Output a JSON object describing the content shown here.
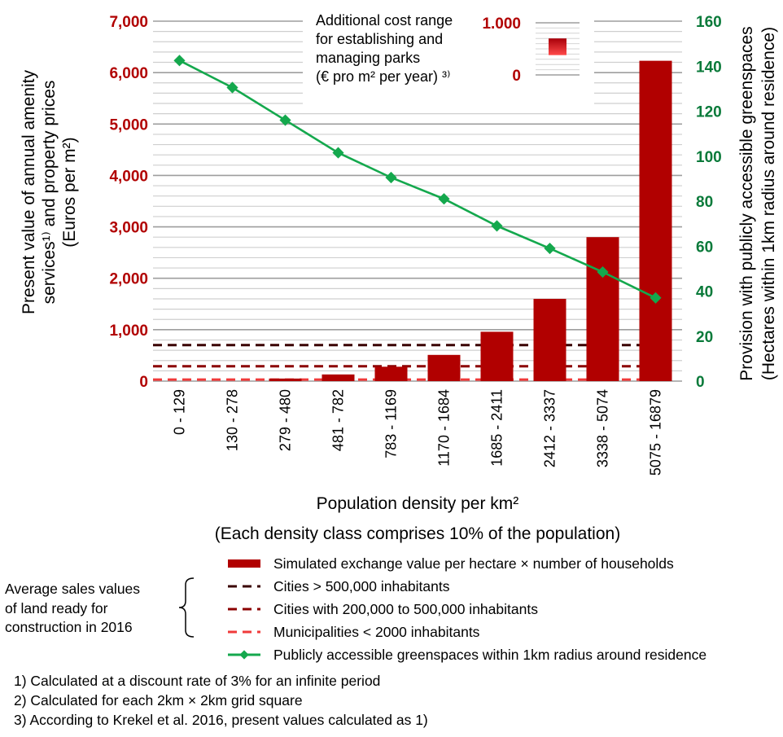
{
  "chart_data": {
    "type": "bar",
    "categories": [
      "0 - 129",
      "130 - 278",
      "279 - 480",
      "481 - 782",
      "783 - 1169",
      "1170 - 1684",
      "1685 - 2411",
      "2412 - 3337",
      "3338 - 5074",
      "5075 - 16879"
    ],
    "series": [
      {
        "name": "Simulated exchange value per hectare × number of households",
        "type": "bar",
        "axis": "left",
        "color": "#b10000",
        "values": [
          0,
          0,
          50,
          130,
          280,
          510,
          960,
          1600,
          2800,
          6230
        ]
      },
      {
        "name": "Publicly accessible greenspaces within 1km radius around residence",
        "type": "line",
        "axis": "right",
        "color": "#14a84d",
        "values": [
          142.5,
          130.5,
          116,
          101.5,
          90.5,
          81,
          69,
          59,
          48.5,
          37
        ]
      }
    ],
    "reference_lines": [
      {
        "name": "Cities > 500,000 inhabitants",
        "value": 700,
        "color": "#3a0000"
      },
      {
        "name": "Cities with 200,000 to 500,000 inhabitants",
        "value": 290,
        "color": "#8b0000"
      },
      {
        "name": "Municipalities < 2000 inhabitants",
        "value": 30,
        "color": "#f03a3a"
      }
    ],
    "y_left": {
      "label_lines": [
        "Present value of annual amenity",
        "services¹⁾ and property prices",
        "(Euros per m²)"
      ],
      "ticks": [
        "0",
        "1,000",
        "2,000",
        "3,000",
        "4,000",
        "5,000",
        "6,000",
        "7,000"
      ],
      "ylim": [
        0,
        7000
      ],
      "color": "#b10000"
    },
    "y_right": {
      "label_lines": [
        "Provision with publicly accessible greenspaces",
        "(Hectares within 1km radius around residence)"
      ],
      "ticks": [
        "0",
        "20",
        "40",
        "60",
        "80",
        "100",
        "120",
        "140",
        "160"
      ],
      "ylim": [
        0,
        160
      ],
      "color": "#0a7a3a"
    },
    "xlabel": "Population density per km²",
    "xsublabel": "(Each density class comprises 10% of the population)",
    "grid": true,
    "inset": {
      "text_lines": [
        "Additional cost range",
        "for establishing and",
        "managing parks",
        "(€ pro m² per year) ³⁾"
      ],
      "ticks": [
        "0",
        "1.000"
      ],
      "range": [
        380,
        700
      ],
      "ylim": [
        0,
        1000
      ]
    }
  },
  "legend": {
    "group_label": [
      "Average sales values",
      "of land ready for",
      "construction in 2016"
    ],
    "items": [
      {
        "label": "Simulated exchange value per hectare × number of households",
        "kind": "bar",
        "color": "#b10000"
      },
      {
        "label": "Cities > 500,000 inhabitants",
        "kind": "dash",
        "color": "#3a0000"
      },
      {
        "label": "Cities with 200,000 to 500,000 inhabitants",
        "kind": "dash",
        "color": "#8b0000"
      },
      {
        "label": "Municipalities < 2000 inhabitants",
        "kind": "dash",
        "color": "#f03a3a"
      },
      {
        "label": "Publicly accessible greenspaces within 1km radius around residence",
        "kind": "line",
        "color": "#14a84d"
      }
    ]
  },
  "footnotes": [
    "1) Calculated at a discount rate of 3% for an infinite period",
    "2) Calculated for each 2km × 2km grid square",
    "3) According to Krekel et al. 2016, present values calculated as 1)"
  ]
}
